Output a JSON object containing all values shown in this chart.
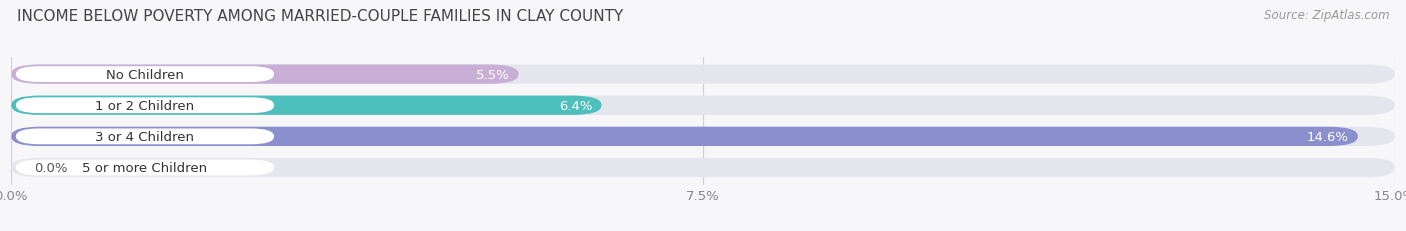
{
  "title": "INCOME BELOW POVERTY AMONG MARRIED-COUPLE FAMILIES IN CLAY COUNTY",
  "source": "Source: ZipAtlas.com",
  "categories": [
    "No Children",
    "1 or 2 Children",
    "3 or 4 Children",
    "5 or more Children"
  ],
  "values": [
    5.5,
    6.4,
    14.6,
    0.0
  ],
  "bar_colors": [
    "#c9aed6",
    "#4dbfbc",
    "#8b8fce",
    "#f7a8bc"
  ],
  "bar_bg_color": "#e5e5ed",
  "xlim": [
    0,
    15.0
  ],
  "xticks": [
    0.0,
    7.5,
    15.0
  ],
  "xtick_labels": [
    "0.0%",
    "7.5%",
    "15.0%"
  ],
  "label_fontsize": 9.5,
  "title_fontsize": 11,
  "source_fontsize": 8.5,
  "value_label_color_inside": "#ffffff",
  "value_label_color_outside": "#555555",
  "background_color": "#f7f7f9",
  "bar_height": 0.62,
  "label_box_color": "#ffffff",
  "label_text_color": "#333333",
  "grid_color": "#d0d0d8",
  "tick_label_color": "#888888"
}
